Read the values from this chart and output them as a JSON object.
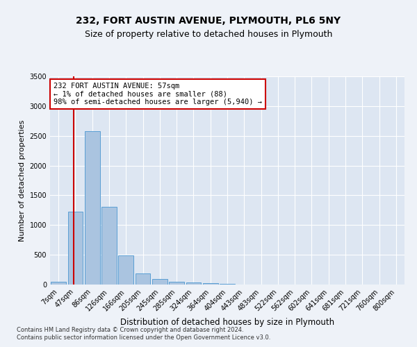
{
  "title1": "232, FORT AUSTIN AVENUE, PLYMOUTH, PL6 5NY",
  "title2": "Size of property relative to detached houses in Plymouth",
  "xlabel": "Distribution of detached houses by size in Plymouth",
  "ylabel": "Number of detached properties",
  "bar_labels": [
    "7sqm",
    "47sqm",
    "86sqm",
    "126sqm",
    "166sqm",
    "205sqm",
    "245sqm",
    "285sqm",
    "324sqm",
    "364sqm",
    "404sqm",
    "443sqm",
    "483sqm",
    "522sqm",
    "562sqm",
    "602sqm",
    "641sqm",
    "681sqm",
    "721sqm",
    "760sqm",
    "800sqm"
  ],
  "bar_values": [
    50,
    1230,
    2580,
    1310,
    490,
    185,
    95,
    50,
    35,
    20,
    10,
    5,
    2,
    1,
    0,
    0,
    0,
    0,
    0,
    0,
    0
  ],
  "bar_color": "#aac4e0",
  "bar_edge_color": "#5a9fd4",
  "annotation_text": "232 FORT AUSTIN AVENUE: 57sqm\n← 1% of detached houses are smaller (88)\n98% of semi-detached houses are larger (5,940) →",
  "annotation_box_color": "#ffffff",
  "annotation_box_edge": "#cc0000",
  "red_line_color": "#cc0000",
  "red_line_x": 0.92,
  "ylim": [
    0,
    3500
  ],
  "yticks": [
    0,
    500,
    1000,
    1500,
    2000,
    2500,
    3000,
    3500
  ],
  "footer1": "Contains HM Land Registry data © Crown copyright and database right 2024.",
  "footer2": "Contains public sector information licensed under the Open Government Licence v3.0.",
  "bg_color": "#eef2f8",
  "plot_bg_color": "#dde6f2",
  "grid_color": "#ffffff",
  "title1_fontsize": 10,
  "title2_fontsize": 9,
  "xlabel_fontsize": 8.5,
  "ylabel_fontsize": 8,
  "tick_fontsize": 7,
  "footer_fontsize": 6
}
